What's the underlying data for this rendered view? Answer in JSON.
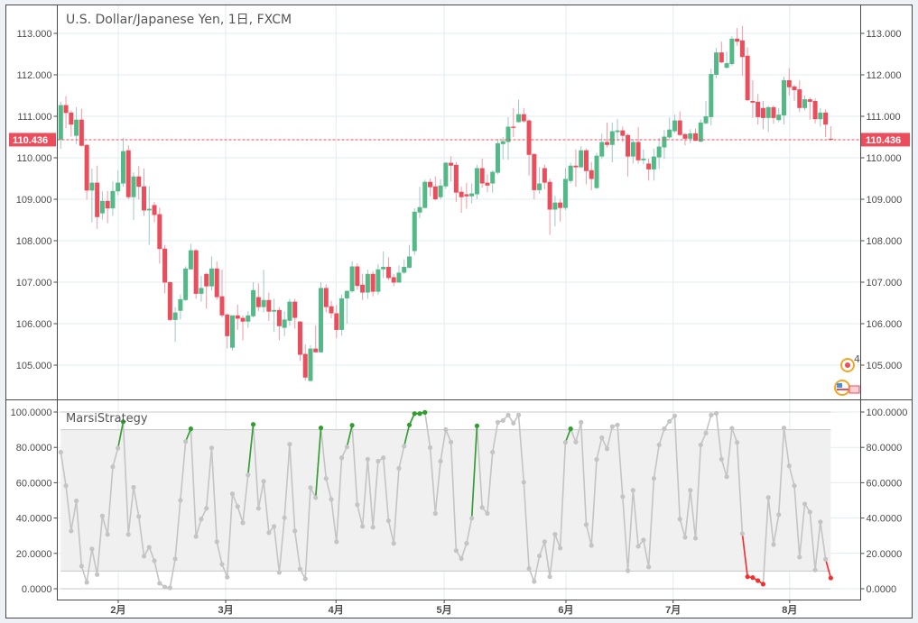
{
  "chart_data": [
    {
      "type": "candlestick",
      "title": "U.S. Dollar/Japanese Yen, 1日, FXCM",
      "ylim": [
        104.3,
        113.7
      ],
      "y_ticks": [
        "105.000",
        "106.000",
        "107.000",
        "108.000",
        "109.000",
        "110.000",
        "111.000",
        "112.000",
        "113.000"
      ],
      "grid": true,
      "last_price": 110.436,
      "last_price_label": "110.436",
      "colors": {
        "up": "#53b987",
        "down": "#eb4d5c",
        "up_wick": "#9fc7c9",
        "down_wick": "#f19aa3",
        "price_line": "#eb4d5c"
      },
      "x_ticks": [
        "2月",
        "3月",
        "4月",
        "5月",
        "6月",
        "7月",
        "8月"
      ],
      "event_markers": [
        {
          "label": "4",
          "icon": "earnings-circle-icon"
        },
        {
          "icon": "us-flag-icon"
        }
      ],
      "candles_ohlc": [
        [
          110.44,
          111.35,
          110.22,
          111.27
        ],
        [
          111.27,
          111.49,
          110.71,
          111.08
        ],
        [
          111.09,
          111.14,
          110.51,
          110.8
        ],
        [
          110.53,
          111.22,
          110.33,
          110.92
        ],
        [
          110.92,
          111.18,
          110.27,
          110.29
        ],
        [
          110.31,
          110.33,
          108.99,
          109.21
        ],
        [
          109.21,
          109.74,
          108.44,
          109.4
        ],
        [
          109.4,
          109.81,
          108.29,
          108.57
        ],
        [
          108.66,
          109.19,
          108.51,
          108.96
        ],
        [
          108.96,
          109.2,
          108.42,
          108.78
        ],
        [
          108.78,
          109.43,
          108.6,
          109.2
        ],
        [
          109.19,
          109.7,
          109.1,
          109.4
        ],
        [
          109.38,
          110.48,
          109.3,
          110.16
        ],
        [
          110.18,
          110.3,
          109.0,
          109.05
        ],
        [
          109.05,
          109.65,
          108.5,
          109.55
        ],
        [
          109.55,
          109.8,
          109.0,
          109.3
        ],
        [
          109.31,
          109.74,
          108.6,
          108.73
        ],
        [
          108.73,
          109.31,
          107.9,
          108.77
        ],
        [
          108.86,
          108.93,
          108.45,
          108.62
        ],
        [
          108.64,
          108.8,
          107.45,
          107.8
        ],
        [
          107.81,
          107.9,
          106.73,
          106.99
        ],
        [
          107.0,
          107.02,
          106.06,
          106.09
        ],
        [
          106.09,
          106.4,
          105.56,
          106.27
        ],
        [
          106.31,
          106.7,
          106.1,
          106.59
        ],
        [
          106.57,
          107.38,
          106.55,
          107.33
        ],
        [
          107.31,
          107.92,
          107.3,
          107.77
        ],
        [
          107.77,
          107.8,
          106.6,
          106.72
        ],
        [
          106.72,
          107.15,
          106.53,
          106.86
        ],
        [
          107.2,
          107.22,
          106.36,
          106.9
        ],
        [
          106.9,
          107.62,
          106.8,
          107.33
        ],
        [
          107.33,
          107.5,
          106.58,
          106.64
        ],
        [
          106.66,
          107.3,
          106.15,
          106.2
        ],
        [
          106.22,
          106.25,
          105.4,
          105.7
        ],
        [
          105.42,
          106.2,
          105.35,
          106.2
        ],
        [
          106.2,
          106.46,
          105.85,
          106.12
        ],
        [
          106.14,
          106.2,
          105.6,
          106.05
        ],
        [
          106.05,
          106.3,
          105.9,
          106.2
        ],
        [
          106.18,
          107.0,
          106.15,
          106.81
        ],
        [
          106.64,
          106.97,
          106.3,
          106.4
        ],
        [
          106.4,
          107.3,
          106.27,
          106.57
        ],
        [
          106.57,
          106.75,
          106.07,
          106.29
        ],
        [
          106.29,
          106.6,
          105.8,
          106.33
        ],
        [
          106.33,
          106.4,
          105.6,
          105.94
        ],
        [
          105.9,
          106.3,
          105.7,
          106.1
        ],
        [
          106.07,
          106.6,
          105.95,
          106.53
        ],
        [
          106.53,
          106.6,
          105.88,
          106.14
        ],
        [
          106.05,
          106.07,
          105.1,
          105.25
        ],
        [
          105.27,
          105.5,
          104.63,
          104.7
        ],
        [
          104.62,
          105.48,
          104.6,
          105.4
        ],
        [
          105.4,
          105.96,
          105.3,
          105.31
        ],
        [
          105.31,
          107.0,
          105.3,
          106.86
        ],
        [
          106.86,
          106.95,
          106.27,
          106.4
        ],
        [
          106.42,
          106.55,
          106.13,
          106.25
        ],
        [
          106.25,
          106.45,
          105.65,
          105.85
        ],
        [
          105.85,
          106.7,
          105.71,
          106.61
        ],
        [
          106.61,
          106.8,
          106.0,
          106.79
        ],
        [
          106.78,
          107.5,
          106.75,
          107.38
        ],
        [
          107.38,
          107.45,
          106.82,
          106.91
        ],
        [
          106.94,
          107.2,
          106.57,
          106.75
        ],
        [
          106.75,
          107.3,
          106.6,
          107.2
        ],
        [
          107.2,
          107.27,
          106.66,
          106.77
        ],
        [
          106.77,
          107.43,
          106.7,
          107.31
        ],
        [
          107.31,
          107.74,
          107.1,
          107.37
        ],
        [
          107.37,
          107.6,
          107.05,
          107.1
        ],
        [
          107.12,
          107.2,
          106.9,
          106.99
        ],
        [
          106.99,
          107.4,
          106.99,
          107.23
        ],
        [
          107.23,
          107.55,
          107.2,
          107.37
        ],
        [
          107.35,
          107.9,
          107.33,
          107.62
        ],
        [
          107.75,
          108.78,
          107.66,
          108.7
        ],
        [
          108.68,
          109.3,
          108.55,
          108.81
        ],
        [
          108.79,
          109.47,
          108.78,
          109.42
        ],
        [
          109.42,
          109.5,
          109.07,
          109.29
        ],
        [
          109.31,
          109.55,
          108.97,
          109.0
        ],
        [
          109.05,
          109.48,
          109.0,
          109.33
        ],
        [
          109.31,
          109.9,
          109.25,
          109.88
        ],
        [
          109.88,
          110.04,
          109.43,
          109.81
        ],
        [
          109.83,
          109.9,
          108.94,
          109.16
        ],
        [
          109.18,
          109.3,
          108.67,
          109.05
        ],
        [
          109.12,
          109.4,
          108.77,
          109.07
        ],
        [
          109.07,
          109.38,
          108.9,
          109.14
        ],
        [
          109.12,
          109.83,
          109.0,
          109.75
        ],
        [
          109.75,
          109.98,
          109.28,
          109.38
        ],
        [
          109.4,
          109.6,
          109.17,
          109.33
        ],
        [
          109.38,
          109.7,
          109.16,
          109.66
        ],
        [
          109.64,
          110.45,
          109.6,
          110.35
        ],
        [
          110.33,
          110.5,
          109.96,
          110.4
        ],
        [
          110.38,
          110.98,
          109.95,
          110.75
        ],
        [
          110.75,
          111.2,
          110.5,
          110.72
        ],
        [
          110.86,
          111.4,
          110.84,
          111.05
        ],
        [
          111.05,
          111.2,
          110.85,
          110.88
        ],
        [
          110.9,
          110.93,
          109.57,
          110.07
        ],
        [
          110.09,
          110.1,
          109.0,
          109.22
        ],
        [
          109.22,
          109.78,
          109.13,
          109.38
        ],
        [
          109.75,
          109.83,
          109.24,
          109.4
        ],
        [
          109.42,
          109.5,
          108.14,
          108.75
        ],
        [
          108.75,
          109.08,
          108.35,
          108.92
        ],
        [
          108.92,
          109.0,
          108.46,
          108.79
        ],
        [
          108.79,
          109.75,
          108.74,
          109.49
        ],
        [
          109.44,
          109.88,
          109.38,
          109.81
        ],
        [
          109.81,
          110.2,
          109.3,
          109.77
        ],
        [
          109.77,
          110.28,
          109.75,
          110.18
        ],
        [
          110.18,
          110.22,
          109.36,
          109.68
        ],
        [
          109.7,
          109.9,
          109.22,
          109.49
        ],
        [
          109.27,
          110.12,
          109.25,
          110.05
        ],
        [
          110.03,
          110.58,
          109.97,
          110.38
        ],
        [
          110.38,
          110.85,
          110.25,
          110.31
        ],
        [
          110.31,
          110.85,
          109.89,
          110.64
        ],
        [
          110.62,
          110.93,
          110.4,
          110.66
        ],
        [
          110.66,
          110.75,
          110.38,
          110.53
        ],
        [
          110.55,
          110.58,
          109.55,
          110.03
        ],
        [
          110.03,
          110.45,
          109.86,
          110.38
        ],
        [
          110.38,
          110.74,
          109.86,
          109.94
        ],
        [
          109.94,
          110.2,
          109.84,
          109.98
        ],
        [
          109.86,
          109.98,
          109.45,
          109.72
        ],
        [
          109.72,
          110.22,
          109.45,
          110.03
        ],
        [
          110.01,
          110.48,
          109.73,
          110.27
        ],
        [
          110.25,
          110.67,
          109.97,
          110.51
        ],
        [
          110.49,
          110.97,
          110.45,
          110.68
        ],
        [
          110.64,
          111.04,
          110.6,
          110.9
        ],
        [
          110.9,
          111.12,
          110.52,
          110.55
        ],
        [
          110.57,
          110.6,
          110.3,
          110.46
        ],
        [
          110.46,
          110.69,
          110.35,
          110.59
        ],
        [
          110.59,
          110.7,
          110.4,
          110.41
        ],
        [
          110.39,
          110.93,
          110.37,
          110.85
        ],
        [
          110.83,
          111.37,
          110.8,
          111.0
        ],
        [
          110.98,
          112.15,
          110.78,
          112.02
        ],
        [
          112.0,
          112.65,
          111.92,
          112.54
        ],
        [
          112.54,
          112.8,
          112.28,
          112.3
        ],
        [
          112.17,
          112.56,
          112.15,
          112.28
        ],
        [
          112.26,
          112.93,
          112.22,
          112.87
        ],
        [
          112.87,
          113.13,
          112.7,
          112.8
        ],
        [
          112.83,
          113.18,
          111.98,
          112.43
        ],
        [
          112.46,
          112.66,
          111.37,
          111.39
        ],
        [
          111.37,
          111.87,
          110.96,
          111.33
        ],
        [
          111.35,
          111.54,
          110.8,
          110.98
        ],
        [
          111.2,
          111.37,
          110.69,
          110.96
        ],
        [
          110.96,
          111.25,
          110.62,
          111.22
        ],
        [
          111.22,
          111.26,
          110.82,
          110.96
        ],
        [
          110.91,
          111.2,
          110.86,
          111.04
        ],
        [
          111.02,
          111.96,
          110.8,
          111.87
        ],
        [
          111.87,
          112.16,
          111.5,
          111.7
        ],
        [
          111.72,
          111.76,
          111.37,
          111.63
        ],
        [
          111.65,
          111.87,
          111.1,
          111.2
        ],
        [
          111.2,
          111.5,
          111.14,
          111.41
        ],
        [
          111.41,
          111.46,
          110.92,
          111.35
        ],
        [
          111.37,
          111.43,
          110.83,
          110.93
        ],
        [
          110.93,
          111.2,
          110.75,
          111.09
        ],
        [
          111.09,
          111.17,
          110.5,
          110.8
        ],
        [
          110.46,
          110.76,
          110.43,
          110.436
        ]
      ]
    },
    {
      "type": "line",
      "title": "MarsiStrategy",
      "ylim": [
        0,
        100
      ],
      "y_ticks": [
        "0.0000",
        "20.0000",
        "40.0000",
        "60.0000",
        "80.0000",
        "100.0000"
      ],
      "band": [
        10,
        90
      ],
      "colors": {
        "line": "#c4c4c4",
        "buy": "#2f9e2f",
        "sell": "#f23030",
        "band": "#f0f0f0"
      },
      "values": [
        77.3,
        58.3,
        32.7,
        49.7,
        12.8,
        3.6,
        22.5,
        8.0,
        41.2,
        30.7,
        69.0,
        79.6,
        94.5,
        30.7,
        57.4,
        40.9,
        18.4,
        23.5,
        15.8,
        3.1,
        1.0,
        0.5,
        16.9,
        50.1,
        83.3,
        90.5,
        29.6,
        39.4,
        45.5,
        79.7,
        26.6,
        13.8,
        6.6,
        53.7,
        46.5,
        37.3,
        64.4,
        93.0,
        45.5,
        60.8,
        31.7,
        35.3,
        9.2,
        40.2,
        81.8,
        32.7,
        11.2,
        5.6,
        57.2,
        51.6,
        91.0,
        62.4,
        50.6,
        26.6,
        74.1,
        80.2,
        92.5,
        47.5,
        35.3,
        73.3,
        34.8,
        72.2,
        74.1,
        38.5,
        25.7,
        68.1,
        80.7,
        92.7,
        99.1,
        99.1,
        99.8,
        79.9,
        42.6,
        72.2,
        90.1,
        83.0,
        21.6,
        17.0,
        25.7,
        39.9,
        92.2,
        46.0,
        42.6,
        77.3,
        94.2,
        95.2,
        98.3,
        93.7,
        98.3,
        60.3,
        11.4,
        4.1,
        18.6,
        26.6,
        6.8,
        30.8,
        23.0,
        82.8,
        90.5,
        83.0,
        94.2,
        36.3,
        24.5,
        73.1,
        85.5,
        79.2,
        91.7,
        92.7,
        52.1,
        10.2,
        55.7,
        24.0,
        27.6,
        12.3,
        62.4,
        81.4,
        90.5,
        94.7,
        97.8,
        39.4,
        29.1,
        55.7,
        28.6,
        81.4,
        88.1,
        98.3,
        99.3,
        73.3,
        63.4,
        90.8,
        82.8,
        31.2,
        6.8,
        6.3,
        4.6,
        2.6,
        51.6,
        25.0,
        41.9,
        91.0,
        69.5,
        58.3,
        17.9,
        48.0,
        43.4,
        10.6,
        37.8,
        16.7,
        6.1
      ],
      "buy_segments": [
        [
          11,
          12
        ],
        [
          24,
          25
        ],
        [
          36,
          37
        ],
        [
          49,
          50
        ],
        [
          55,
          56
        ],
        [
          66,
          70
        ],
        [
          79,
          80
        ],
        [
          97,
          98
        ]
      ],
      "sell_segments": [
        [
          131,
          135
        ],
        [
          147,
          148
        ]
      ]
    }
  ]
}
